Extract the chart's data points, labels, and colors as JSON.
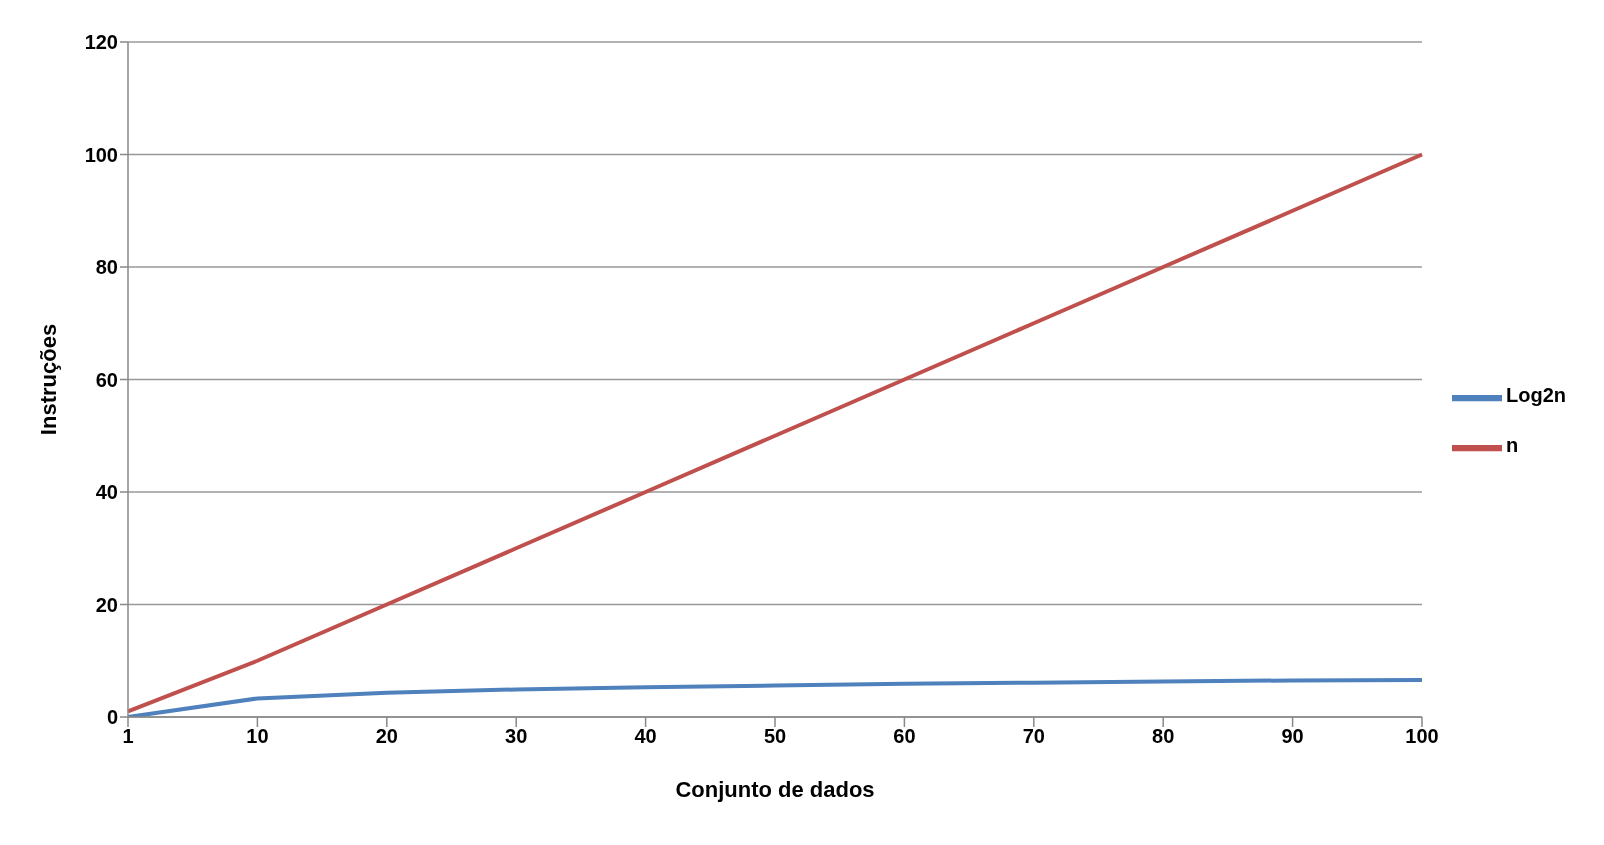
{
  "chart_data": {
    "type": "line",
    "xlabel": "Conjunto de dados",
    "ylabel": "Instruções",
    "categories": [
      "1",
      "10",
      "20",
      "30",
      "40",
      "50",
      "60",
      "70",
      "80",
      "90",
      "100"
    ],
    "series": [
      {
        "name": "Log2n",
        "color": "#4f81bd",
        "values": [
          0,
          3.3,
          4.3,
          4.9,
          5.3,
          5.6,
          5.9,
          6.1,
          6.3,
          6.5,
          6.6
        ]
      },
      {
        "name": "n",
        "color": "#c0504d",
        "values": [
          1,
          10,
          20,
          30,
          40,
          50,
          60,
          70,
          80,
          90,
          100
        ]
      }
    ],
    "ylim": [
      0,
      120
    ],
    "yticks": [
      0,
      20,
      40,
      60,
      80,
      100,
      120
    ],
    "grid": "y",
    "legend": "right",
    "marker": "none"
  }
}
